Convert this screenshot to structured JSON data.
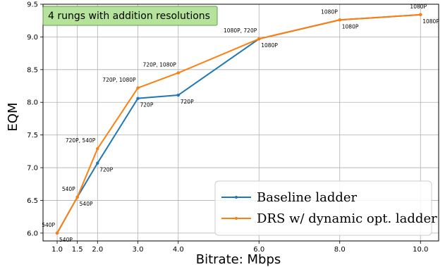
{
  "colors": {
    "baseline": "#1f77b4",
    "drs": "#ff7f0e",
    "grid": "#b0b0b0",
    "annotation_fill": "#b5e39b",
    "annotation_stroke": "#6a9a52"
  },
  "annotation": "4 rungs with addition resolutions",
  "chart_data": {
    "type": "line",
    "xlabel": "Bitrate: Mbps",
    "ylabel": "EQM",
    "xlim": [
      0.65,
      10.45
    ],
    "ylim": [
      5.88,
      9.5
    ],
    "xticks": [
      1.0,
      1.5,
      2.0,
      3.0,
      4.0,
      6.0,
      8.0,
      10.0
    ],
    "xtick_labels": [
      "1.0",
      "1.5",
      "2.0",
      "3.0",
      "4.0",
      "6.0",
      "8.0",
      "10.0"
    ],
    "yticks": [
      6.0,
      6.5,
      7.0,
      7.5,
      8.0,
      8.5,
      9.0,
      9.5
    ],
    "ytick_labels": [
      "6.0",
      "6.5",
      "7.0",
      "7.5",
      "8.0",
      "8.5",
      "9.0",
      "9.5"
    ],
    "grid": true,
    "legend_position": "bottom-right",
    "series": [
      {
        "name": "Baseline ladder",
        "color_key": "baseline",
        "x": [
          1.0,
          1.5,
          2.0,
          3.0,
          4.0,
          6.0,
          8.0,
          10.0
        ],
        "y": [
          6.0,
          6.55,
          7.07,
          8.06,
          8.11,
          8.97,
          9.26,
          9.34
        ],
        "point_labels": [
          "540P",
          "540P",
          "720P",
          "720P",
          "720P",
          "1080P",
          "1080P",
          "1080P"
        ]
      },
      {
        "name": "DRS w/ dynamic opt. ladder",
        "color_key": "drs",
        "x": [
          1.0,
          1.5,
          2.0,
          3.0,
          4.0,
          6.0,
          8.0,
          10.0
        ],
        "y": [
          6.0,
          6.55,
          7.29,
          8.22,
          8.45,
          8.97,
          9.26,
          9.34
        ],
        "point_labels": [
          "540P",
          "540P",
          "720P, 540P",
          "720P, 1080P",
          "720P, 1080P",
          "1080P, 720P",
          "1080P",
          "1080P"
        ]
      }
    ]
  }
}
